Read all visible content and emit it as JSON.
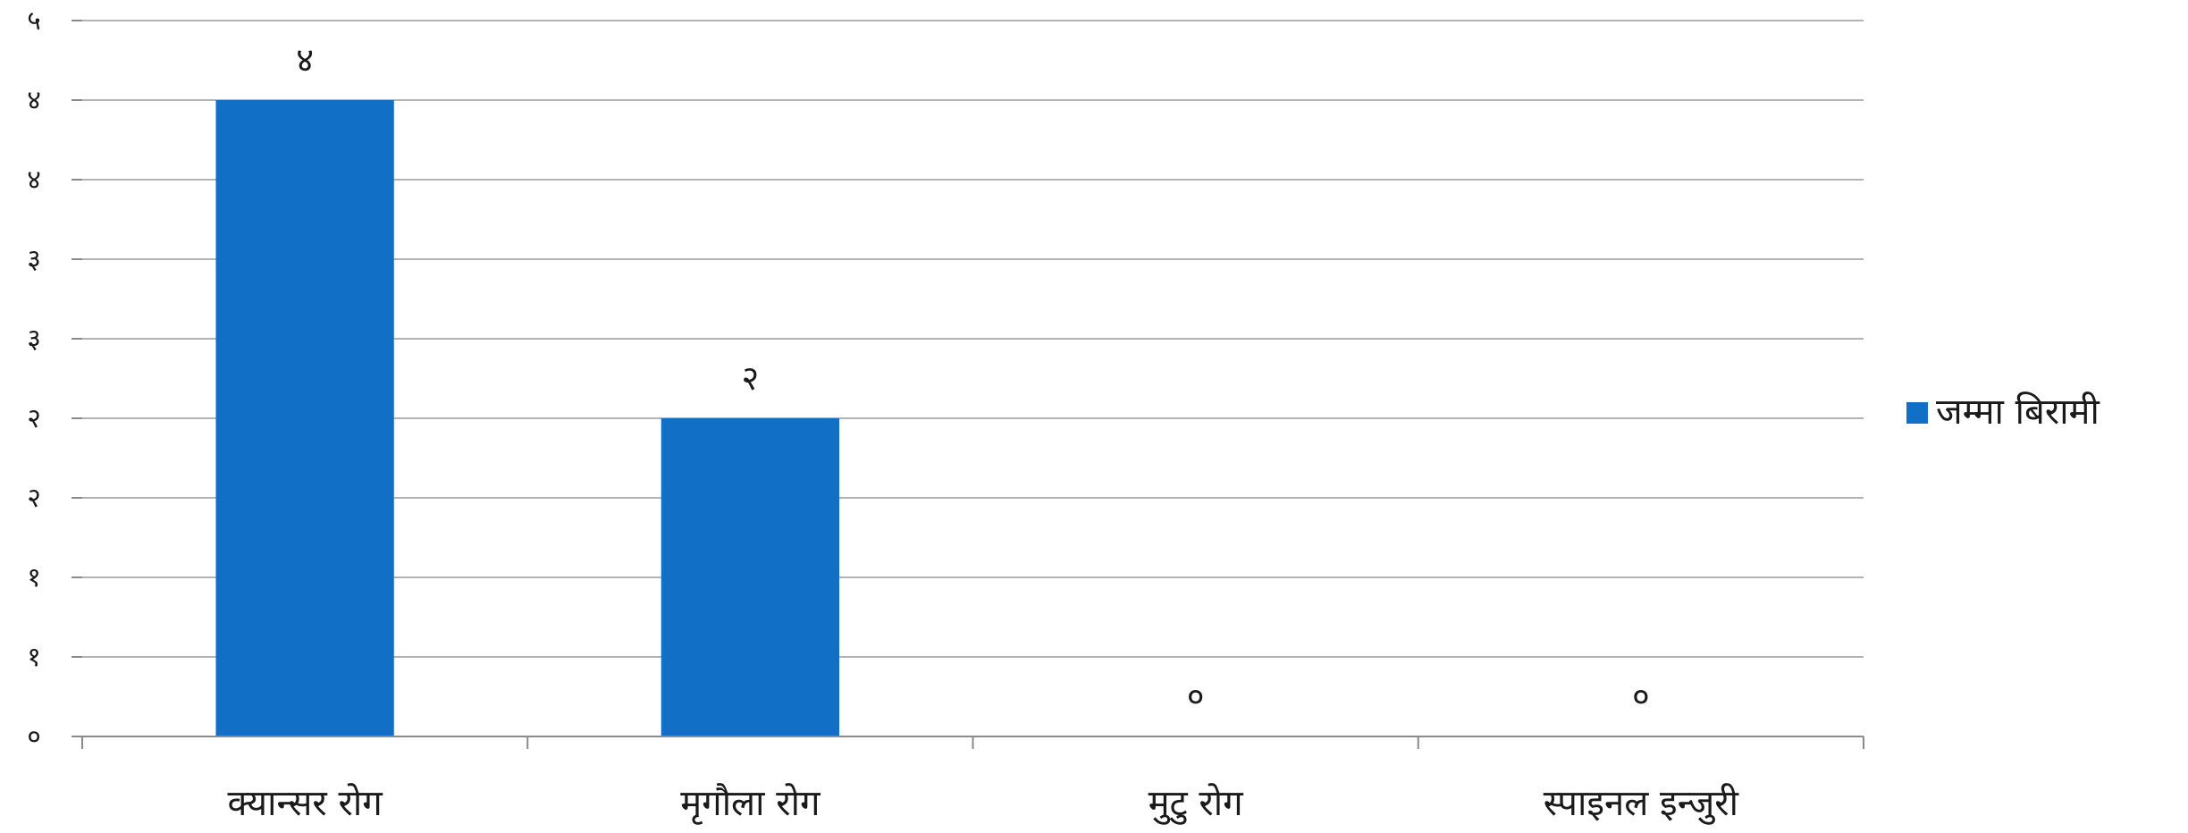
{
  "chart_data": {
    "type": "bar",
    "categories": [
      "क्यान्सर रोग",
      "मृगौला रोग",
      "मुटु रोग",
      "स्पाइनल इन्जुरी"
    ],
    "series": [
      {
        "name": "जम्मा बिरामी",
        "values": [
          4,
          2,
          0,
          0
        ],
        "value_labels": [
          "४",
          "२",
          "०",
          "०"
        ],
        "color": "#1170c6"
      }
    ],
    "y_ticks": [
      {
        "value": 0,
        "label": "०"
      },
      {
        "value": 0.5,
        "label": "१"
      },
      {
        "value": 1,
        "label": "१"
      },
      {
        "value": 1.5,
        "label": "२"
      },
      {
        "value": 2,
        "label": "२"
      },
      {
        "value": 2.5,
        "label": "३"
      },
      {
        "value": 3,
        "label": "३"
      },
      {
        "value": 3.5,
        "label": "४"
      },
      {
        "value": 4,
        "label": "४"
      },
      {
        "value": 4.5,
        "label": "५"
      }
    ],
    "ylim": [
      0,
      4.5
    ],
    "grid": true,
    "legend": "right",
    "title": "",
    "xlabel": "",
    "ylabel": ""
  }
}
